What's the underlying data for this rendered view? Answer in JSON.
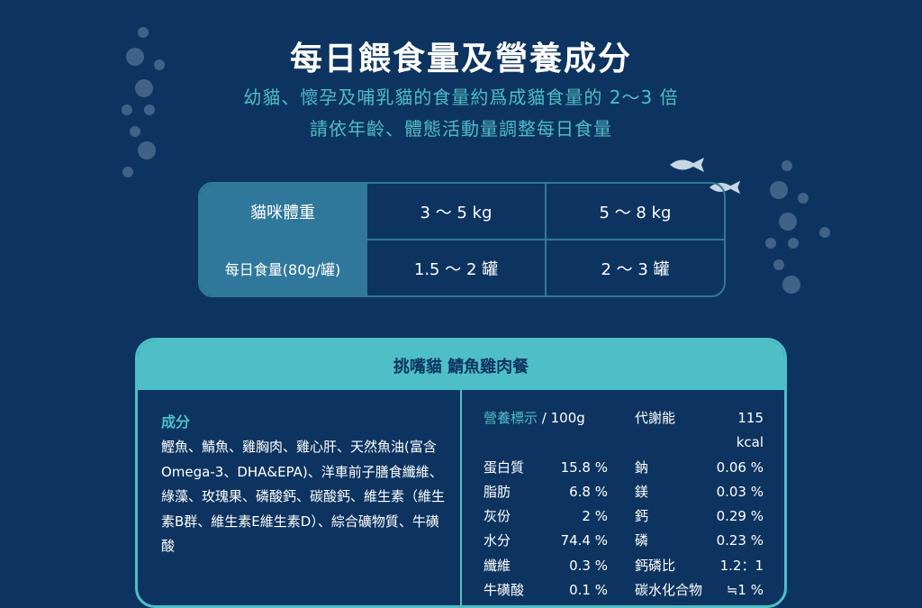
{
  "header": {
    "title": "每日餵食量及營養成分",
    "subtitle1": "幼貓、懷孕及哺乳貓的食量約爲成貓食量的 2～3 倍",
    "subtitle2": "請依年齡、體態活動量調整每日食量"
  },
  "feeding_table": {
    "rows": [
      {
        "label": "貓咪體重",
        "cells": [
          "3 ～ 5 kg",
          "5 ～ 8 kg"
        ]
      },
      {
        "label": "每日食量(80g/罐)",
        "cells": [
          "1.5 ～ 2 罐",
          "2 ～ 3 罐"
        ]
      }
    ]
  },
  "product": {
    "name": "挑嘴貓 鯖魚雞肉餐",
    "ingredients_title": "成分",
    "ingredients": "鰹魚、鯖魚、雞胸肉、雞心肝、天然魚油(富含Omega-3、DHA&EPA)、洋車前子膳食纖維、綠藻、玫瑰果、磷酸鈣、碳酸鈣、維生素（維生素B群、維生素E維生素D）、綜合礦物質、牛磺酸",
    "nutrition_label": "營養標示",
    "nutrition_unit": "/ 100g",
    "energy_label": "代謝能",
    "energy_value": "115 kcal",
    "left": [
      [
        "蛋白質",
        "15.8 %"
      ],
      [
        "脂肪",
        "6.8 %"
      ],
      [
        "灰份",
        "2 %"
      ],
      [
        "水分",
        "74.4 %"
      ],
      [
        "纖維",
        "0.3 %"
      ],
      [
        "牛磺酸",
        "0.1 %"
      ]
    ],
    "right": [
      [
        "鈉",
        "0.06 %"
      ],
      [
        "鎂",
        "0.03 %"
      ],
      [
        "鈣",
        "0.29 %"
      ],
      [
        "磷",
        "0.23 %"
      ],
      [
        "鈣磷比",
        "1.2：1"
      ],
      [
        "碳水化合物",
        "≒1 %"
      ]
    ]
  },
  "colors": {
    "background": "#0d3460",
    "accent": "#4fbfc7",
    "table_header": "#2f789b"
  }
}
